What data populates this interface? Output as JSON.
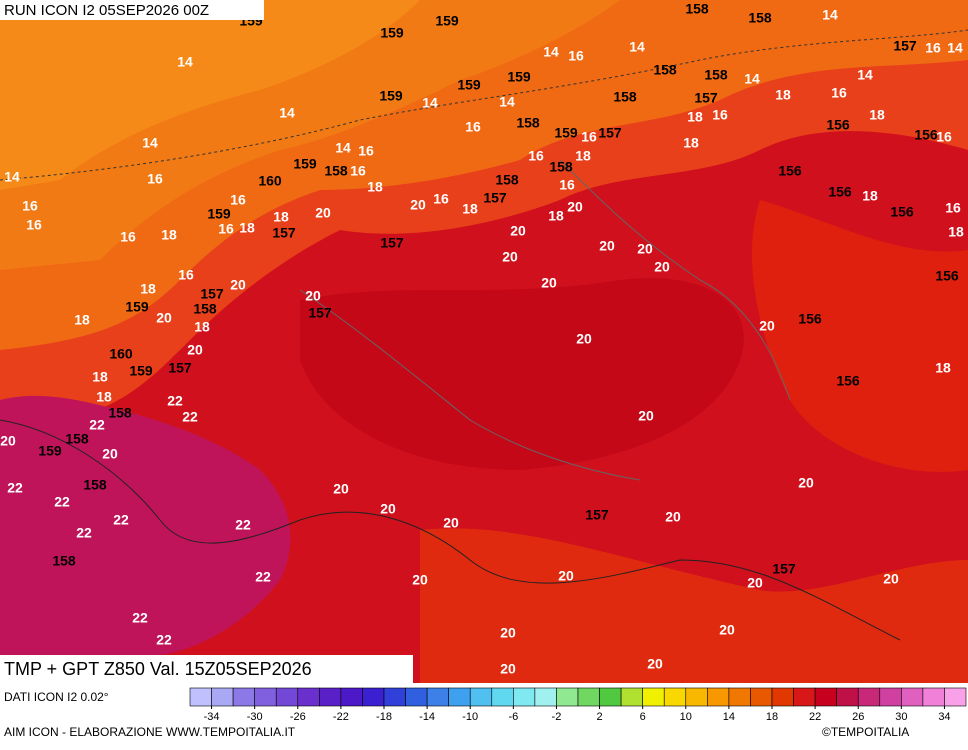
{
  "header": "RUN ICON I2 05SEP2026 00Z",
  "title": "TMP + GPT Z850 Val. 15Z05SEP2026",
  "source": "DATI ICON I2 0.02°",
  "footer_left": "AIM ICON - ELABORAZIONE WWW.TEMPOITALIA.IT",
  "footer_right": "©TEMPOITALIA",
  "colorbar": {
    "range": [
      -36,
      36
    ],
    "ticks": [
      -34,
      -30,
      -26,
      -22,
      -18,
      -14,
      -10,
      -6,
      -2,
      2,
      6,
      10,
      14,
      18,
      22,
      26,
      30,
      34
    ],
    "colors": [
      "#c0c0ff",
      "#a8a8f4",
      "#8c78e6",
      "#8060de",
      "#7448d6",
      "#6a30ce",
      "#5a20c8",
      "#4c18c8",
      "#3a20d0",
      "#3040d8",
      "#3060e0",
      "#3c80e8",
      "#40a0f0",
      "#50c0f0",
      "#60d8f0",
      "#80e8f0",
      "#a0f0f0",
      "#90e890",
      "#70d860",
      "#50c840",
      "#b0e030",
      "#f0f000",
      "#f8d800",
      "#f8b800",
      "#f89800",
      "#f07800",
      "#e85800",
      "#e03800",
      "#d81818",
      "#c80020",
      "#c01048",
      "#c82878",
      "#d040a0",
      "#e060c0",
      "#f080d8",
      "#f8a0e8"
    ]
  },
  "isotherm_labels": [
    14,
    14,
    14,
    14,
    16,
    16,
    16,
    16,
    18,
    16,
    18,
    18,
    20,
    18,
    20,
    18,
    18,
    22,
    22,
    22,
    20,
    20,
    22,
    22,
    22,
    22,
    22,
    22,
    22,
    22,
    20,
    20,
    20,
    18,
    18,
    16,
    16,
    18,
    16,
    14,
    16,
    14,
    20,
    16,
    18,
    16,
    14,
    20,
    20,
    20,
    18,
    20,
    16,
    18,
    16,
    20,
    20,
    20,
    14,
    16,
    14,
    16,
    18,
    18,
    16,
    14,
    18,
    16,
    14,
    18,
    18,
    16,
    18,
    16,
    14,
    16,
    14,
    20,
    20,
    20,
    20,
    20,
    20,
    20,
    20,
    20,
    20,
    20,
    20,
    20,
    20,
    20,
    20,
    18,
    18
  ],
  "height_labels": [
    159,
    159,
    159,
    159,
    159,
    159,
    158,
    159,
    157,
    158,
    158,
    158,
    157,
    158,
    158,
    157,
    156,
    156,
    156,
    156,
    156,
    156,
    156,
    156,
    159,
    158,
    160,
    159,
    157,
    157,
    158,
    157,
    158,
    157,
    158,
    157,
    159,
    160,
    159,
    157,
    158,
    158,
    159,
    158,
    158,
    157,
    157
  ]
}
